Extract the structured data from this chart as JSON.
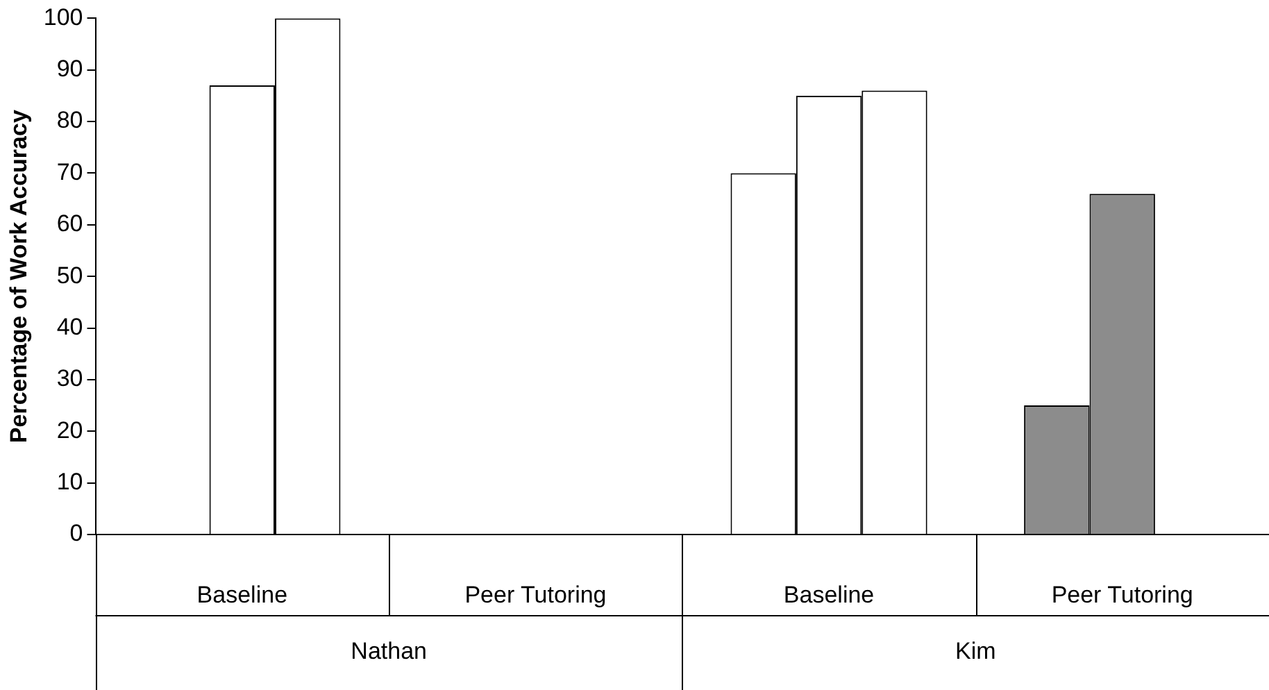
{
  "chart_data": {
    "type": "bar",
    "ylabel": "Percentage of Work Accuracy",
    "categories": [
      "Baseline",
      "Peer Tutoring",
      "Baseline",
      "Peer Tutoring"
    ],
    "series": [
      {
        "colors": [
          "#ffffff",
          "#ffffff",
          "#ffffff",
          "#8c8c8c"
        ],
        "values": [
          null,
          null,
          70,
          25
        ]
      },
      {
        "colors": [
          "#ffffff",
          "#ffffff",
          "#ffffff",
          "#8c8c8c"
        ],
        "values": [
          87,
          null,
          85,
          66
        ]
      },
      {
        "colors": [
          "#ffffff",
          "#ffffff",
          "#ffffff",
          "#8c8c8c"
        ],
        "values": [
          100,
          null,
          86,
          null
        ]
      }
    ],
    "annotations": [
      "Nathan",
      "Kim"
    ],
    "ylim": [
      0,
      100
    ],
    "yticks": [
      0,
      10,
      20,
      30,
      40,
      50,
      60,
      70,
      80,
      90,
      100
    ],
    "grid": false,
    "legend": false
  }
}
